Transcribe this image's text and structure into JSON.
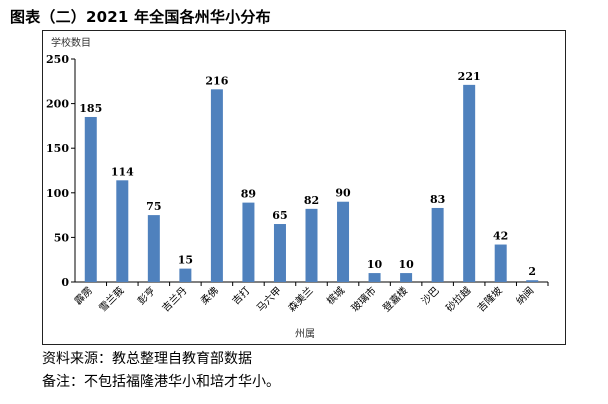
{
  "figure_title": "图表（二）2021 年全国各州华小分布",
  "source_note": "资料来源：教总整理自教育部数据",
  "remark_note": "备注：不包括福隆港华小和培才华小。",
  "colors": {
    "bar": "#4F81BD",
    "axis": "#000000"
  },
  "chart_data": {
    "type": "bar",
    "title": "",
    "ylabel": "学校数目",
    "xlabel": "州属",
    "ylim": [
      0,
      250
    ],
    "yticks": [
      0,
      50,
      100,
      150,
      200,
      250
    ],
    "grid": false,
    "categories": [
      "霹雳",
      "雪兰莪",
      "彭亨",
      "吉兰丹",
      "柔佛",
      "吉打",
      "马六甲",
      "森美兰",
      "槟城",
      "玻璃市",
      "登嘉楼",
      "沙巴",
      "砂拉越",
      "吉隆坡",
      "纳闽"
    ],
    "values": [
      185,
      114,
      75,
      15,
      216,
      89,
      65,
      82,
      90,
      10,
      10,
      83,
      221,
      42,
      2
    ],
    "data_labels": true
  }
}
